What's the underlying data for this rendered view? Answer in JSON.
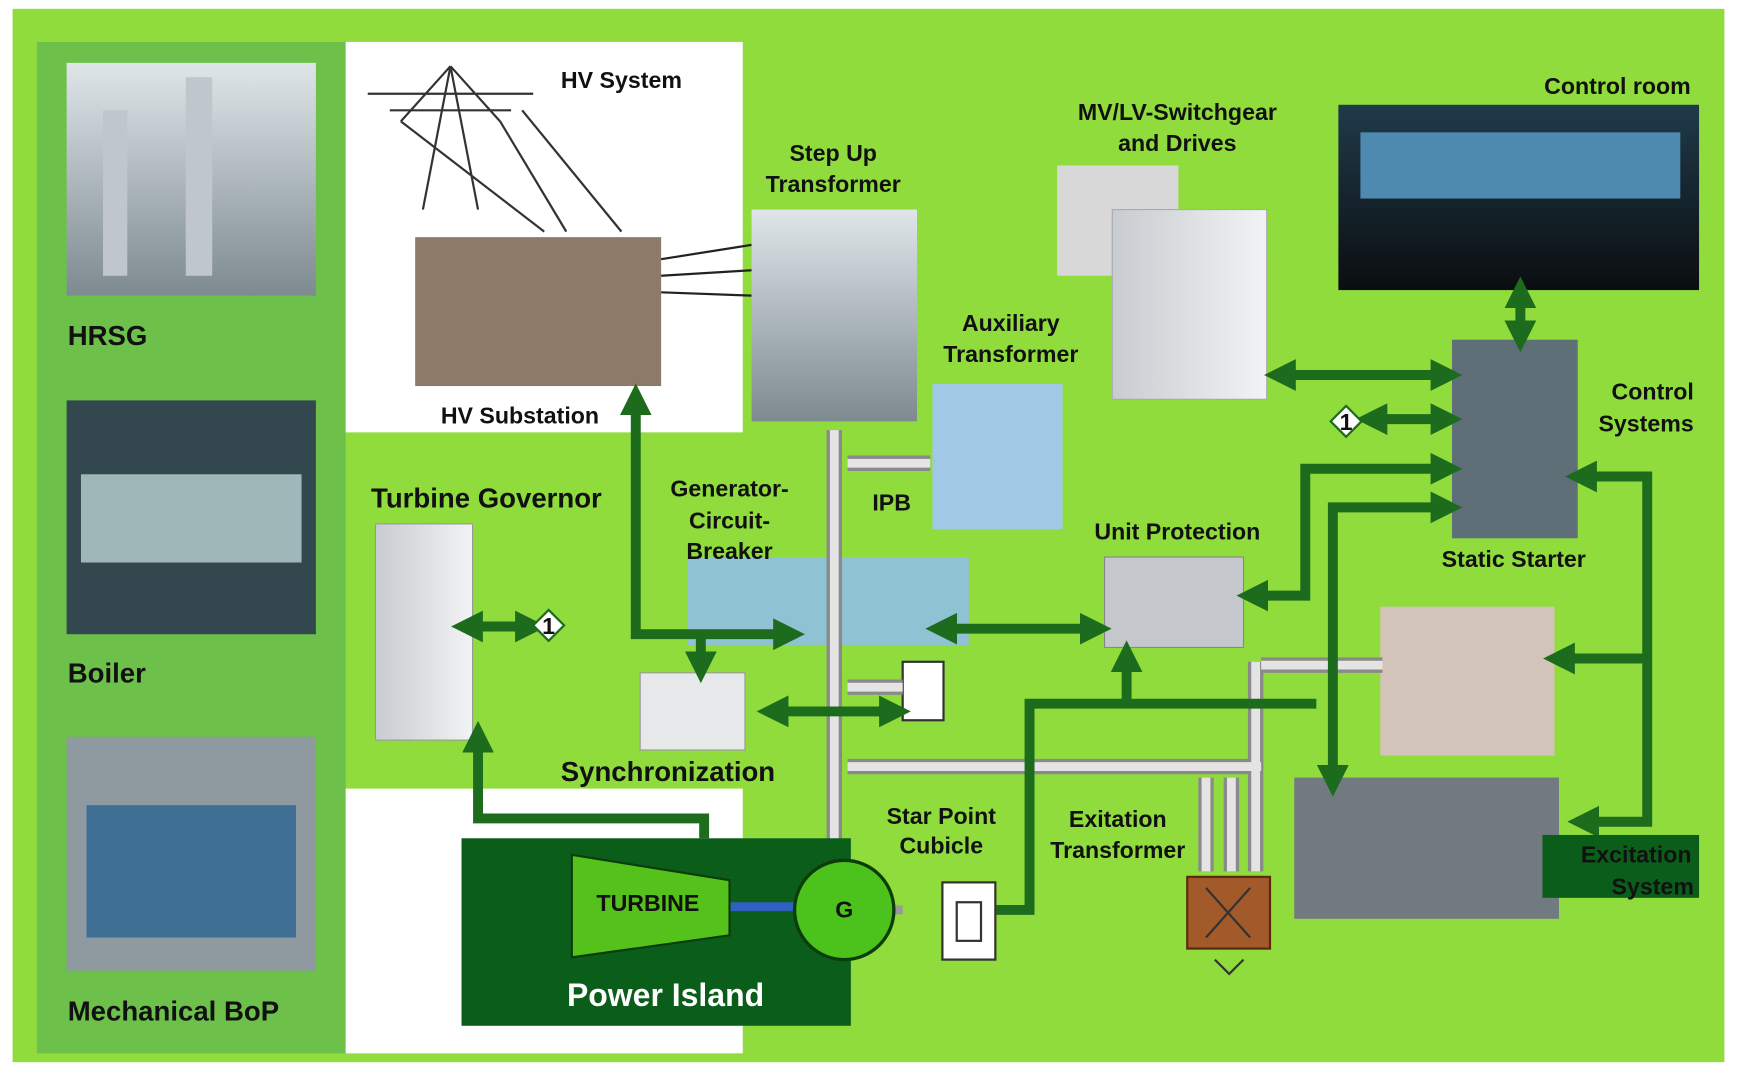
{
  "labels": {
    "hrsg": "HRSG",
    "boiler": "Boiler",
    "mechanical_bop": "Mechanical BoP",
    "hv_system": "HV System",
    "hv_substation": "HV Substation",
    "step_up_transformer": [
      "Step Up",
      "Transformer"
    ],
    "mv_lv_switchgear": [
      "MV/LV-Switchgear",
      "and Drives"
    ],
    "control_room": "Control room",
    "auxiliary_transformer": [
      "Auxiliary",
      "Transformer"
    ],
    "control_systems": [
      "Control",
      "Systems"
    ],
    "turbine_governor": "Turbine Governor",
    "generator_circuit_breaker": [
      "Generator-",
      "Circuit-",
      "Breaker"
    ],
    "ipb": "IPB",
    "unit_protection": "Unit Protection",
    "static_starter": "Static Starter",
    "synchronization": "Synchronization",
    "star_point_cubicle": [
      "Star Point",
      "Cubicle"
    ],
    "exitation_transformer": [
      "Exitation",
      "Transformer"
    ],
    "excitation_system": [
      "Excitation",
      "System"
    ],
    "turbine": "TURBINE",
    "generator": "G",
    "power_island": "Power Island"
  },
  "markers": [
    "1",
    "1"
  ]
}
